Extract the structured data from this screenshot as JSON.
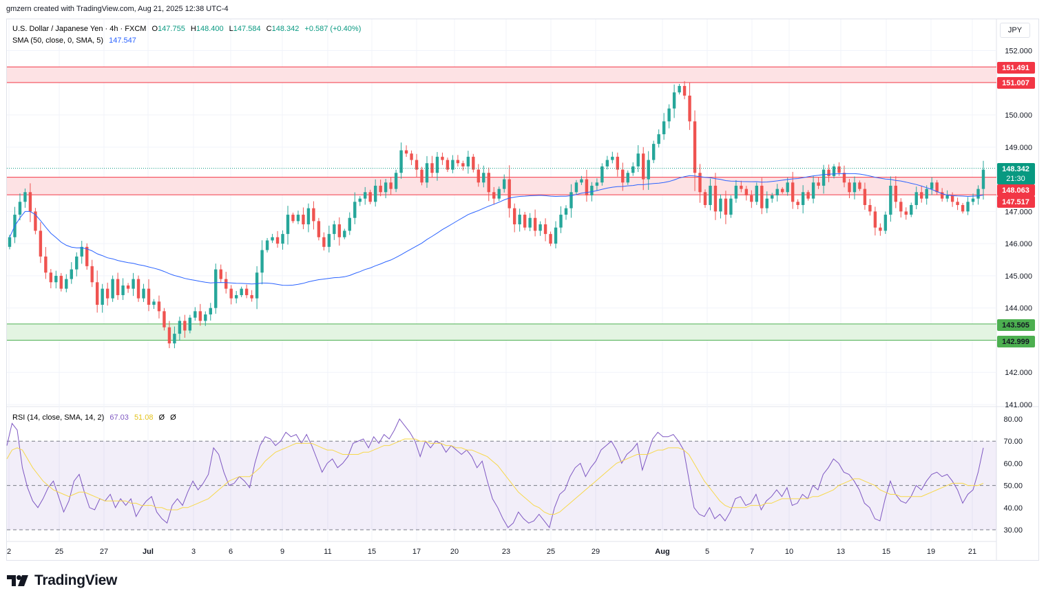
{
  "credit": "gmzern created with TradingView.com, Aug 21, 2025 12:38 UTC-4",
  "brand": "TradingView",
  "currency_button": "JPY",
  "legend": {
    "symbol": "U.S. Dollar / Japanese Yen · 4h · FXCM",
    "o_label": "O",
    "o": "147.755",
    "h_label": "H",
    "h": "148.400",
    "l_label": "L",
    "l": "147.584",
    "c_label": "C",
    "c": "148.342",
    "change": "+0.587 (+0.40%)",
    "sma_label": "SMA (50, close, 0, SMA, 5)",
    "sma_value": "147.547",
    "rsi_label": "RSI (14, close, SMA, 14, 2)",
    "rsi_value": "67.03",
    "rsi_sma_value": "51.08",
    "rsi_extra1": "Ø",
    "rsi_extra2": "Ø"
  },
  "price_labels": {
    "r1_top": "151.491",
    "r1_bottom": "151.007",
    "current": "148.342",
    "countdown": "21:30",
    "r2_top": "148.063",
    "r2_bottom": "147.517",
    "s_top": "143.505",
    "s_bottom": "142.999"
  },
  "colors": {
    "up": "#26a69a",
    "down": "#ef5350",
    "sma": "#2962ff",
    "rsi": "#7e57c2",
    "rsi_sma": "#f7d84a",
    "resistance_fill": "#fde2e4",
    "resistance_line": "#f23645",
    "support_fill": "#e3f4e2",
    "support_line": "#4caf50",
    "price_badge": "#089981"
  },
  "chart_data": [
    {
      "type": "candlestick",
      "title": "U.S. Dollar / Japanese Yen · 4h · FXCM",
      "y_ticks": [
        "141.000",
        "142.000",
        "144.000",
        "145.000",
        "146.000",
        "147.000",
        "149.000",
        "150.000",
        "152.000"
      ],
      "ylim": [
        141.0,
        152.4
      ],
      "x_ticks": [
        "2",
        "25",
        "27",
        "Jul",
        "3",
        "6",
        "9",
        "11",
        "15",
        "17",
        "20",
        "23",
        "25",
        "29",
        "Aug",
        "5",
        "7",
        "10",
        "13",
        "15",
        "19",
        "21"
      ],
      "zones": [
        {
          "name": "resistance-upper",
          "top": 151.491,
          "bottom": 151.007
        },
        {
          "name": "resistance-lower",
          "top": 148.063,
          "bottom": 147.517
        },
        {
          "name": "support",
          "top": 143.505,
          "bottom": 142.999
        }
      ],
      "last_close": 148.342,
      "closes": [
        146.2,
        146.9,
        147.3,
        147.6,
        147.0,
        146.4,
        145.6,
        145.1,
        144.8,
        145.0,
        144.6,
        144.9,
        145.2,
        145.6,
        145.9,
        145.3,
        144.8,
        144.1,
        144.6,
        144.3,
        144.9,
        144.4,
        144.7,
        144.6,
        144.9,
        144.3,
        144.6,
        144.1,
        144.2,
        143.9,
        143.4,
        142.9,
        143.2,
        143.6,
        143.3,
        143.7,
        143.9,
        143.6,
        143.8,
        144.0,
        145.2,
        144.9,
        144.6,
        144.3,
        144.4,
        144.6,
        144.4,
        144.3,
        145.1,
        145.8,
        146.1,
        146.2,
        146.0,
        146.3,
        146.9,
        146.7,
        146.9,
        146.6,
        147.1,
        146.7,
        146.2,
        145.9,
        146.3,
        146.6,
        146.2,
        146.4,
        146.8,
        147.3,
        147.4,
        147.6,
        147.3,
        147.8,
        147.6,
        147.9,
        147.7,
        148.2,
        148.9,
        148.8,
        148.6,
        148.3,
        147.9,
        148.5,
        148.2,
        148.7,
        148.6,
        148.3,
        148.6,
        148.5,
        148.4,
        148.7,
        148.3,
        147.9,
        148.2,
        147.6,
        147.4,
        147.7,
        148.0,
        147.1,
        146.6,
        146.9,
        146.5,
        146.8,
        146.4,
        146.6,
        146.3,
        146.0,
        146.5,
        146.9,
        147.1,
        147.6,
        147.9,
        148.0,
        147.5,
        147.8,
        147.9,
        148.4,
        148.6,
        148.7,
        148.3,
        147.9,
        148.2,
        148.4,
        148.8,
        148.0,
        148.6,
        149.1,
        149.4,
        149.8,
        150.2,
        150.7,
        150.9,
        150.6,
        149.8,
        148.2,
        147.6,
        147.2,
        147.8,
        147.0,
        147.4,
        146.9,
        147.4,
        147.8,
        147.7,
        147.5,
        147.3,
        147.8,
        147.1,
        147.4,
        147.5,
        147.7,
        147.6,
        147.9,
        147.3,
        147.2,
        147.6,
        147.4,
        147.9,
        147.8,
        148.3,
        148.1,
        148.4,
        148.2,
        147.9,
        147.6,
        147.9,
        147.7,
        147.2,
        147.0,
        146.5,
        146.4,
        146.9,
        147.8,
        147.3,
        147.0,
        146.9,
        147.2,
        147.6,
        147.4,
        147.7,
        147.9,
        147.6,
        147.4,
        147.5,
        147.3,
        147.2,
        147.0,
        147.3,
        147.4,
        147.7,
        148.3
      ]
    },
    {
      "type": "line",
      "title": "RSI (14, close, SMA, 14, 2)",
      "y_ticks": [
        "30.00",
        "40.00",
        "50.00",
        "60.00",
        "70.00",
        "80.00"
      ],
      "ylim": [
        27,
        83
      ],
      "bands": {
        "upper": 70,
        "middle": 50,
        "lower": 30
      },
      "series": [
        {
          "name": "RSI",
          "values": [
            68,
            78,
            75,
            58,
            49,
            43,
            40,
            44,
            49,
            52,
            45,
            38,
            43,
            52,
            55,
            47,
            40,
            39,
            44,
            43,
            46,
            40,
            44,
            41,
            44,
            36,
            40,
            43,
            45,
            38,
            35,
            33,
            41,
            44,
            41,
            47,
            52,
            48,
            51,
            55,
            67,
            64,
            56,
            50,
            51,
            54,
            52,
            49,
            60,
            68,
            72,
            71,
            68,
            70,
            74,
            72,
            73,
            69,
            73,
            68,
            62,
            56,
            60,
            62,
            58,
            60,
            63,
            69,
            70,
            71,
            67,
            72,
            69,
            73,
            71,
            75,
            80,
            77,
            74,
            70,
            63,
            70,
            67,
            70,
            69,
            65,
            68,
            66,
            64,
            66,
            63,
            58,
            61,
            52,
            44,
            40,
            35,
            31,
            33,
            38,
            35,
            33,
            34,
            37,
            34,
            31,
            40,
            46,
            48,
            54,
            58,
            60,
            54,
            58,
            61,
            66,
            68,
            70,
            66,
            60,
            64,
            66,
            69,
            57,
            64,
            71,
            74,
            72,
            72,
            73,
            70,
            66,
            53,
            40,
            37,
            36,
            40,
            35,
            37,
            34,
            38,
            44,
            45,
            41,
            42,
            46,
            39,
            43,
            45,
            48,
            45,
            49,
            41,
            42,
            46,
            44,
            50,
            48,
            55,
            58,
            62,
            60,
            56,
            55,
            52,
            48,
            42,
            40,
            35,
            34,
            44,
            52,
            46,
            43,
            42,
            45,
            50,
            48,
            52,
            55,
            56,
            54,
            55,
            52,
            48,
            42,
            46,
            48,
            56,
            67
          ]
        },
        {
          "name": "RSI SMA",
          "values": [
            62,
            66,
            67,
            66,
            62,
            58,
            55,
            52,
            50,
            48,
            47,
            46,
            45,
            46,
            47,
            47,
            46,
            45,
            44,
            43,
            43,
            43,
            43,
            43,
            42,
            42,
            41,
            41,
            41,
            40,
            40,
            39,
            39,
            39,
            40,
            40,
            41,
            42,
            43,
            44,
            46,
            48,
            50,
            52,
            53,
            54,
            54,
            54,
            56,
            58,
            61,
            63,
            65,
            66,
            67,
            68,
            69,
            69,
            69,
            69,
            68,
            67,
            66,
            66,
            65,
            64,
            64,
            64,
            64,
            65,
            65,
            66,
            67,
            68,
            68,
            69,
            70,
            71,
            71,
            71,
            70,
            70,
            69,
            69,
            69,
            68,
            68,
            67,
            67,
            66,
            66,
            65,
            64,
            63,
            61,
            59,
            56,
            53,
            50,
            47,
            45,
            43,
            41,
            40,
            38,
            37,
            37,
            38,
            40,
            42,
            44,
            46,
            48,
            50,
            52,
            54,
            56,
            58,
            60,
            61,
            62,
            63,
            64,
            64,
            64,
            65,
            66,
            66,
            67,
            67,
            67,
            66,
            64,
            60,
            56,
            52,
            49,
            46,
            43,
            41,
            40,
            40,
            40,
            40,
            41,
            41,
            41,
            42,
            42,
            43,
            44,
            44,
            44,
            44,
            44,
            44,
            45,
            45,
            46,
            47,
            48,
            50,
            51,
            52,
            53,
            53,
            52,
            51,
            50,
            48,
            47,
            46,
            46,
            45,
            45,
            45,
            45,
            45,
            46,
            47,
            48,
            49,
            50,
            51,
            51,
            51,
            50,
            50,
            50,
            51
          ]
        }
      ]
    }
  ]
}
